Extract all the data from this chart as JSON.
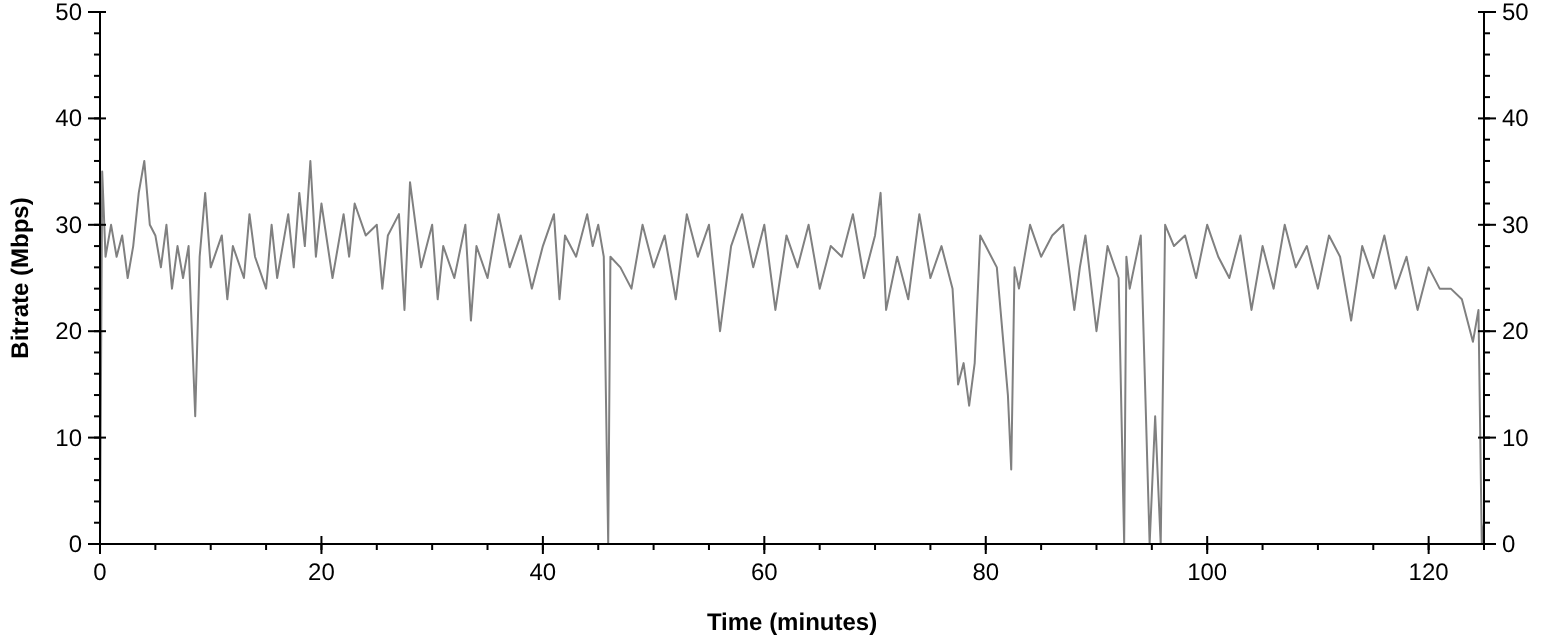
{
  "chart_data": {
    "type": "line",
    "xlabel": "Time (minutes)",
    "ylabel": "Bitrate (Mbps)",
    "xlim": [
      0,
      125
    ],
    "xticks": [
      0,
      20,
      40,
      60,
      80,
      100,
      120
    ],
    "ylim": [
      0,
      50
    ],
    "yticks": [
      0,
      10,
      20,
      30,
      40,
      50
    ],
    "y2lim": [
      0,
      50
    ],
    "y2ticks": [
      0,
      10,
      20,
      30,
      40,
      50
    ],
    "grid": false,
    "marker": "none",
    "line_style": "solid",
    "series": [
      {
        "color": "#808080",
        "x": [
          0,
          0.2,
          0.5,
          1,
          1.5,
          2,
          2.5,
          3,
          3.5,
          4,
          4.5,
          5,
          5.5,
          6,
          6.5,
          7,
          7.5,
          8,
          8.6,
          9,
          9.5,
          10,
          11,
          11.5,
          12,
          13,
          13.5,
          14,
          15,
          15.5,
          16,
          17,
          17.5,
          18,
          18.5,
          19,
          19.5,
          20,
          21,
          22,
          22.5,
          23,
          24,
          25,
          25.5,
          26,
          27,
          27.5,
          28,
          29,
          30,
          30.5,
          31,
          32,
          33,
          33.5,
          34,
          35,
          36,
          37,
          38,
          39,
          40,
          41,
          41.5,
          42,
          43,
          44,
          44.5,
          45,
          45.5,
          45.9,
          46.1,
          47,
          48,
          49,
          50,
          51,
          52,
          53,
          54,
          55,
          56,
          57,
          58,
          59,
          60,
          61,
          62,
          63,
          64,
          65,
          66,
          67,
          68,
          69,
          70,
          70.5,
          71,
          72,
          73,
          74,
          75,
          76,
          77,
          77.5,
          78,
          78.5,
          79,
          79.5,
          80,
          81,
          82,
          82.3,
          82.6,
          83,
          84,
          85,
          86,
          87,
          88,
          88.5,
          89,
          90,
          91,
          92,
          92.5,
          92.7,
          93,
          94,
          94.8,
          95.3,
          95.8,
          96.2,
          97,
          98,
          99,
          100,
          101,
          102,
          103,
          104,
          105,
          106,
          107,
          108,
          109,
          110,
          111,
          112,
          113,
          114,
          115,
          116,
          117,
          118,
          119,
          120,
          121,
          122,
          123,
          124,
          124.5,
          124.8,
          125
        ],
        "values": [
          0,
          35,
          27,
          30,
          27,
          29,
          25,
          28,
          33,
          36,
          30,
          29,
          26,
          30,
          24,
          28,
          25,
          28,
          12,
          27,
          33,
          26,
          29,
          23,
          28,
          25,
          31,
          27,
          24,
          30,
          25,
          31,
          26,
          33,
          28,
          36,
          27,
          32,
          25,
          31,
          27,
          32,
          29,
          30,
          24,
          29,
          31,
          22,
          34,
          26,
          30,
          23,
          28,
          25,
          30,
          21,
          28,
          25,
          31,
          26,
          29,
          24,
          28,
          31,
          23,
          29,
          27,
          31,
          28,
          30,
          27,
          0,
          27,
          26,
          24,
          30,
          26,
          29,
          23,
          31,
          27,
          30,
          20,
          28,
          31,
          26,
          30,
          22,
          29,
          26,
          30,
          24,
          28,
          27,
          31,
          25,
          29,
          33,
          22,
          27,
          23,
          31,
          25,
          28,
          24,
          15,
          17,
          13,
          17,
          29,
          28,
          26,
          14,
          7,
          26,
          24,
          30,
          27,
          29,
          30,
          22,
          26,
          29,
          20,
          28,
          25,
          0,
          27,
          24,
          29,
          0,
          12,
          0,
          30,
          28,
          29,
          25,
          30,
          27,
          25,
          29,
          22,
          28,
          24,
          30,
          26,
          28,
          24,
          29,
          27,
          21,
          28,
          25,
          29,
          24,
          27,
          22,
          26,
          24,
          24,
          23,
          19,
          22,
          0,
          2
        ]
      }
    ]
  }
}
